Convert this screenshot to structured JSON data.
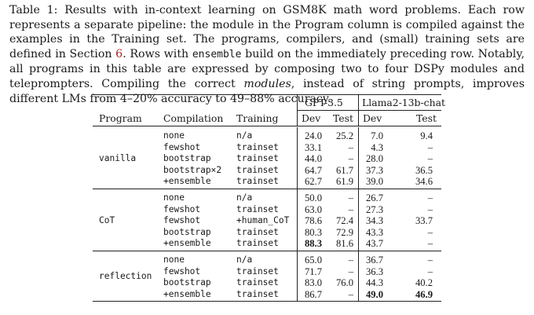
{
  "caption": {
    "part1": "Table 1: Results with in-context learning on GSM8K math word problems. Each row represents a separate pipeline: the module in the Program column is compiled against the examples in the Training set. The programs, compilers, and (small) training sets are defined in Section ",
    "section_ref": "6",
    "part2": ". Rows with ",
    "ensemble_code": "ensemble",
    "part3": " build on the immediately preceding row. Notably, all programs in this table are expressed by composing two to four DSPy modules and teleprompters. Compiling the correct ",
    "modules_word": "modules",
    "part4": ", instead of string prompts, improves different LMs from 4–20% accuracy to 49–88% accuracy."
  },
  "table": {
    "model_headers": [
      "GPT-3.5",
      "Llama2-13b-chat"
    ],
    "col_headers": [
      "Program",
      "Compilation",
      "Training",
      "Dev",
      "Test",
      "Dev",
      "Test"
    ],
    "groups": [
      {
        "program": "vanilla",
        "rows": [
          {
            "compilation": "none",
            "training": "n/a",
            "gpt_dev": "24.0",
            "gpt_test": "25.2",
            "llama_dev": "7.0",
            "llama_test": "9.4"
          },
          {
            "compilation": "fewshot",
            "training": "trainset",
            "gpt_dev": "33.1",
            "gpt_test": "–",
            "llama_dev": "4.3",
            "llama_test": "–"
          },
          {
            "compilation": "bootstrap",
            "training": "trainset",
            "gpt_dev": "44.0",
            "gpt_test": "–",
            "llama_dev": "28.0",
            "llama_test": "–"
          },
          {
            "compilation": "bootstrap×2",
            "training": "trainset",
            "gpt_dev": "64.7",
            "gpt_test": "61.7",
            "llama_dev": "37.3",
            "llama_test": "36.5"
          },
          {
            "compilation": "+ensemble",
            "training": "trainset",
            "gpt_dev": "62.7",
            "gpt_test": "61.9",
            "llama_dev": "39.0",
            "llama_test": "34.6"
          }
        ]
      },
      {
        "program": "CoT",
        "rows": [
          {
            "compilation": "none",
            "training": "n/a",
            "gpt_dev": "50.0",
            "gpt_test": "–",
            "llama_dev": "26.7",
            "llama_test": "–"
          },
          {
            "compilation": "fewshot",
            "training": "trainset",
            "gpt_dev": "63.0",
            "gpt_test": "–",
            "llama_dev": "27.3",
            "llama_test": "–"
          },
          {
            "compilation": "fewshot",
            "training": "+human_CoT",
            "gpt_dev": "78.6",
            "gpt_test": "72.4",
            "llama_dev": "34.3",
            "llama_test": "33.7"
          },
          {
            "compilation": "bootstrap",
            "training": "trainset",
            "gpt_dev": "80.3",
            "gpt_test": "72.9",
            "llama_dev": "43.3",
            "llama_test": "–"
          },
          {
            "compilation": "+ensemble",
            "training": "trainset",
            "gpt_dev": "88.3",
            "gpt_test": "81.6",
            "llama_dev": "43.7",
            "llama_test": "–",
            "bold": [
              "gpt_dev"
            ]
          }
        ]
      },
      {
        "program": "reflection",
        "rows": [
          {
            "compilation": "none",
            "training": "n/a",
            "gpt_dev": "65.0",
            "gpt_test": "–",
            "llama_dev": "36.7",
            "llama_test": "–"
          },
          {
            "compilation": "fewshot",
            "training": "trainset",
            "gpt_dev": "71.7",
            "gpt_test": "–",
            "llama_dev": "36.3",
            "llama_test": "–"
          },
          {
            "compilation": "bootstrap",
            "training": "trainset",
            "gpt_dev": "83.0",
            "gpt_test": "76.0",
            "llama_dev": "44.3",
            "llama_test": "40.2"
          },
          {
            "compilation": "+ensemble",
            "training": "trainset",
            "gpt_dev": "86.7",
            "gpt_test": "–",
            "llama_dev": "49.0",
            "llama_test": "46.9",
            "bold": [
              "llama_dev",
              "llama_test"
            ]
          }
        ]
      }
    ]
  }
}
